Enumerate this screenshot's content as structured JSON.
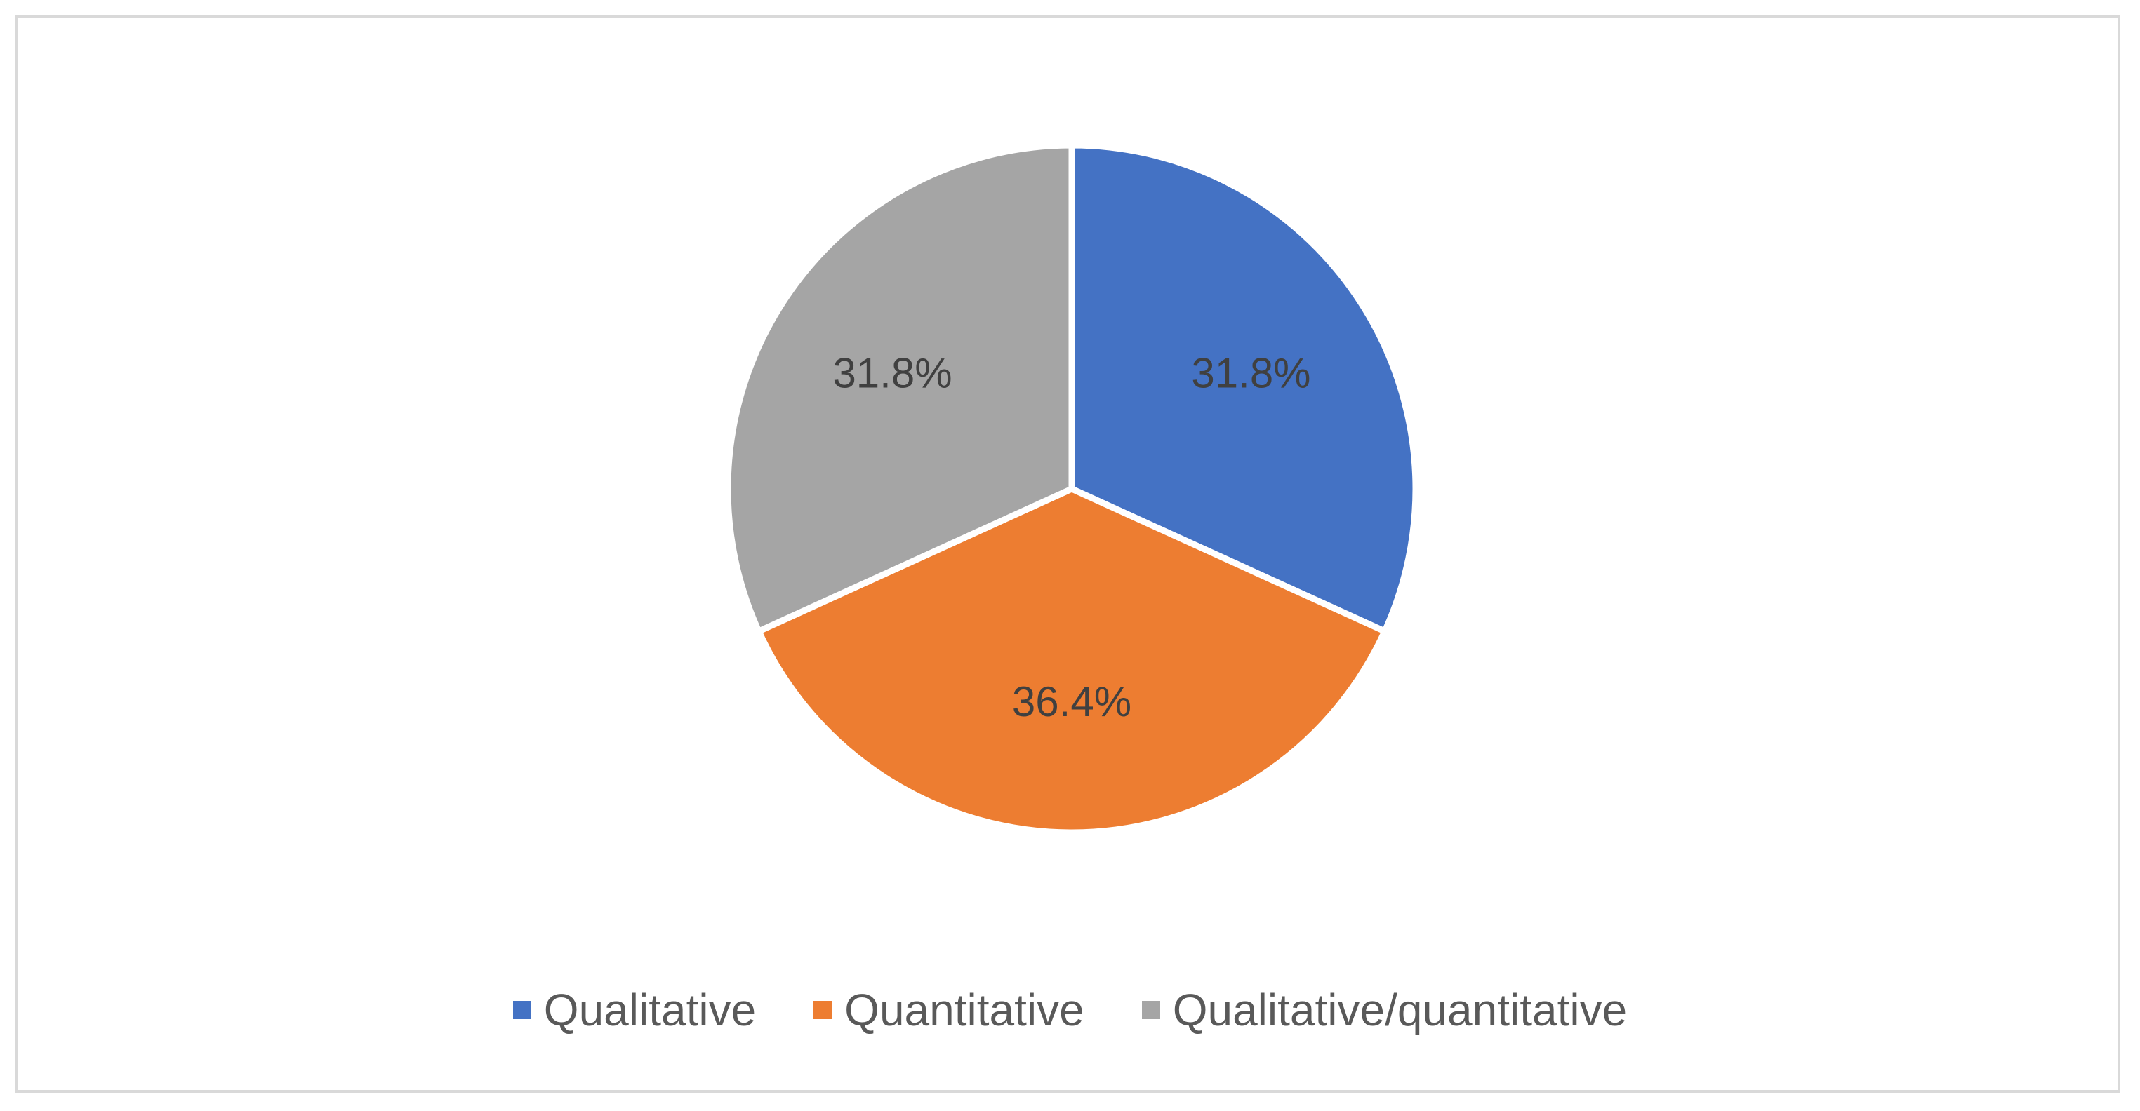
{
  "chart_data": {
    "type": "pie",
    "title": "",
    "categories": [
      "Qualitative",
      "Quantitative",
      "Qualitative/quantitative"
    ],
    "values": [
      31.8,
      36.4,
      31.8
    ],
    "data_labels": [
      "31.8%",
      "36.4%",
      "31.8%"
    ],
    "colors": [
      "#4472C4",
      "#ED7D31",
      "#A5A5A5"
    ],
    "legend_position": "bottom",
    "start_angle": "12 o'clock, clockwise"
  }
}
